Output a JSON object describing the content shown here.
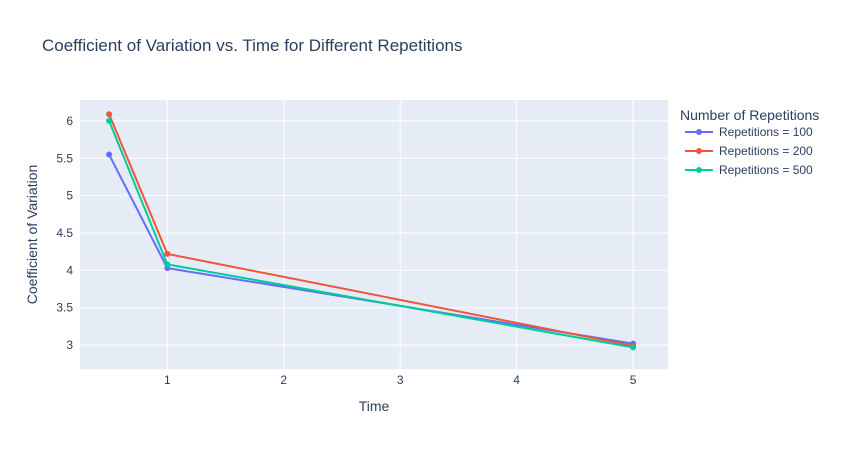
{
  "chart_data": {
    "type": "line",
    "title": "Coefficient of Variation vs. Time for Different Repetitions",
    "xlabel": "Time",
    "ylabel": "Coefficient of Variation",
    "x": [
      0.5,
      1,
      5
    ],
    "xlim": [
      0.25,
      5.3
    ],
    "ylim": [
      2.68,
      6.28
    ],
    "xticks": [
      1,
      2,
      3,
      4,
      5
    ],
    "yticks": [
      3,
      3.5,
      4,
      4.5,
      5,
      5.5,
      6
    ],
    "grid": true,
    "legend_title": "Number of Repetitions",
    "legend_position": "right",
    "series": [
      {
        "name": "Repetitions = 100",
        "color": "#636efa",
        "values": [
          5.55,
          4.03,
          3.02
        ]
      },
      {
        "name": "Repetitions = 200",
        "color": "#ef553b",
        "values": [
          6.09,
          4.22,
          2.99
        ]
      },
      {
        "name": "Repetitions = 500",
        "color": "#00cc96",
        "values": [
          6.0,
          4.08,
          2.97
        ]
      }
    ]
  }
}
